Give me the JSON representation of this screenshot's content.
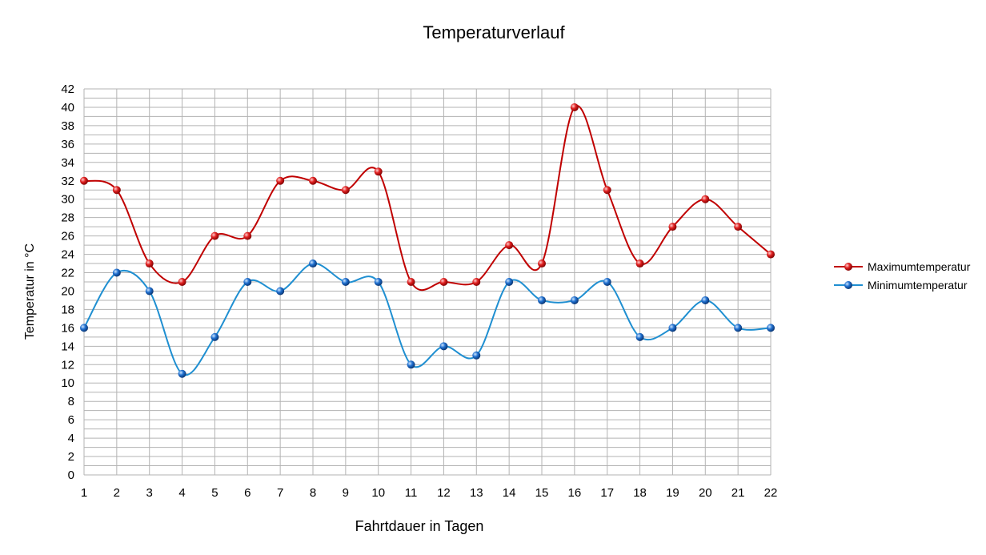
{
  "chart_data": {
    "type": "line",
    "title": "Temperaturverlauf",
    "xlabel": "Fahrtdauer in Tagen",
    "ylabel": "Temperatur in °C",
    "x": [
      1,
      2,
      3,
      4,
      5,
      6,
      7,
      8,
      9,
      10,
      11,
      12,
      13,
      14,
      15,
      16,
      17,
      18,
      19,
      20,
      21,
      22
    ],
    "ylim": [
      0,
      42
    ],
    "ytick_step": 2,
    "minor_step": 1,
    "grid": true,
    "smooth": true,
    "legend_position": "right",
    "series": [
      {
        "name": "Maximumtemperatur",
        "color": "#c00000",
        "values": [
          32,
          31,
          23,
          21,
          26,
          26,
          32,
          32,
          31,
          33,
          21,
          21,
          21,
          25,
          23,
          40,
          31,
          23,
          27,
          30,
          27,
          24
        ]
      },
      {
        "name": "Minimumtemperatur",
        "color": "#1f8fd1",
        "values": [
          16,
          22,
          20,
          11,
          15,
          21,
          20,
          23,
          21,
          21,
          12,
          14,
          13,
          21,
          19,
          19,
          21,
          15,
          16,
          19,
          16,
          16
        ]
      }
    ]
  }
}
